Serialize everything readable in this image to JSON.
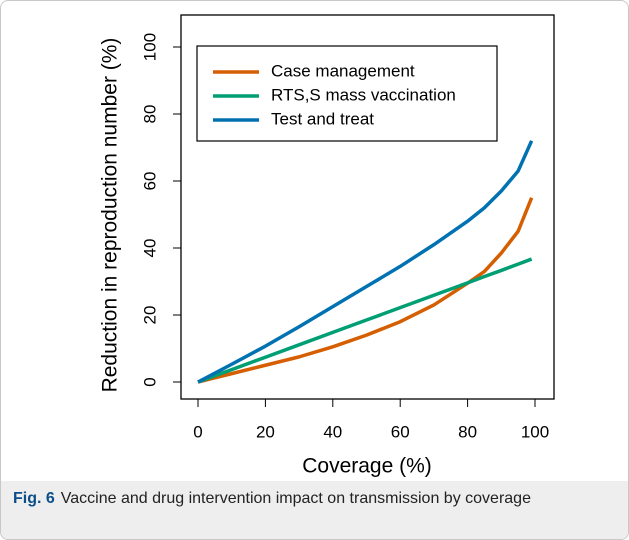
{
  "chart_data": {
    "type": "line",
    "xlabel": "Coverage (%)",
    "ylabel": "Reduction in reproduction number (%)",
    "x": [
      0,
      10,
      20,
      30,
      40,
      50,
      60,
      70,
      80,
      85,
      90,
      95,
      99
    ],
    "series": [
      {
        "name": "Case management",
        "color": "#d55e00",
        "values": [
          0,
          2.5,
          5,
          7.5,
          10.5,
          14,
          18,
          23,
          29.5,
          33,
          38.5,
          45,
          55
        ]
      },
      {
        "name": "RTS,S mass vaccination",
        "color": "#009e73",
        "values": [
          0,
          3.7,
          7.4,
          11.1,
          14.8,
          18.5,
          22.2,
          25.9,
          29.6,
          31.5,
          33.3,
          35.2,
          36.7
        ]
      },
      {
        "name": "Test and treat",
        "color": "#0072b2",
        "values": [
          0,
          5.3,
          10.7,
          16.5,
          22.5,
          28.5,
          34.5,
          41,
          48,
          52,
          57,
          63,
          72
        ]
      }
    ],
    "xlim": [
      0,
      100
    ],
    "xticks": [
      0,
      20,
      40,
      60,
      80,
      100
    ],
    "ylim": [
      0,
      100
    ],
    "yticks": [
      0,
      20,
      40,
      60,
      80,
      100
    ],
    "legend": "top-left"
  },
  "caption": {
    "label": "Fig. 6",
    "text": "Vaccine and drug intervention impact on transmission by coverage"
  }
}
